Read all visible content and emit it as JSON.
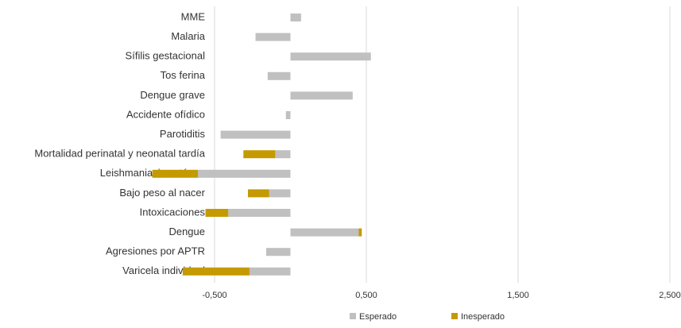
{
  "chart_data": {
    "type": "stacked-barh",
    "categories": [
      "MME",
      "Malaria",
      "Sífilis gestacional",
      "Tos ferina",
      "Dengue grave",
      "Accidente ofídico",
      "Parotiditis",
      "Mortalidad perinatal y neonatal tardía",
      "Leishmaniasis cutánea",
      "Bajo peso al nacer",
      "Intoxicaciones",
      "Dengue",
      "Agresiones por APTR",
      "Varicela individual"
    ],
    "series": [
      {
        "name": "Esperado",
        "color": "#c0c0c0",
        "values": [
          0.07,
          -0.23,
          0.53,
          -0.15,
          0.41,
          -0.03,
          -0.46,
          -0.1,
          -0.61,
          -0.14,
          -0.41,
          0.45,
          -0.16,
          -0.27
        ]
      },
      {
        "name": "Inesperado",
        "color": "#c49a00",
        "values": [
          null,
          null,
          null,
          null,
          null,
          null,
          null,
          -0.21,
          -0.3,
          -0.14,
          -0.15,
          0.02,
          null,
          -0.44
        ]
      }
    ],
    "xlim": [
      -0.5,
      2.5
    ],
    "xticks": [
      {
        "value": -0.5,
        "label": "-0,500"
      },
      {
        "value": 0.5,
        "label": "0,500"
      },
      {
        "value": 1.5,
        "label": "1,500"
      },
      {
        "value": 2.5,
        "label": "2,500"
      }
    ],
    "grid": true,
    "legend": "bottom"
  }
}
